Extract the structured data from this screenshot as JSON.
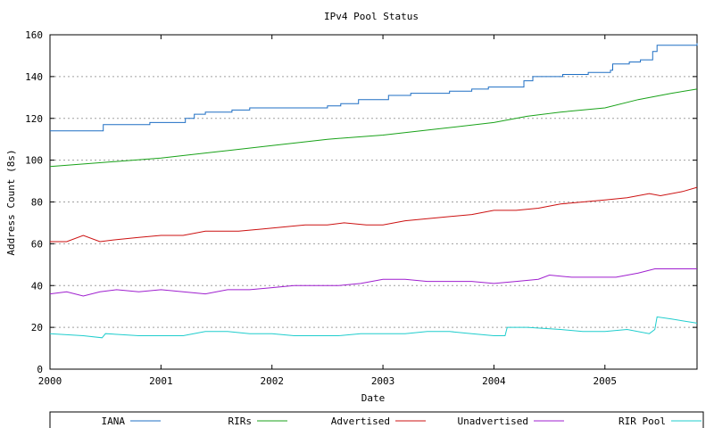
{
  "chart_data": {
    "type": "line",
    "title": "IPv4 Pool Status",
    "xlabel": "Date",
    "ylabel": "Address Count (8s)",
    "xlim": [
      2000.0,
      2005.83
    ],
    "ylim": [
      0,
      160
    ],
    "xticks": [
      2000,
      2001,
      2002,
      2003,
      2004,
      2005
    ],
    "yticks": [
      0,
      20,
      40,
      60,
      80,
      100,
      120,
      140,
      160
    ],
    "grid": "horizontal dotted",
    "legend_position": "bottom",
    "series": [
      {
        "name": "IANA",
        "color": "#1f6fc4",
        "step": true,
        "x": [
          2000.0,
          2000.48,
          2000.9,
          2001.0,
          2001.22,
          2001.3,
          2001.4,
          2001.5,
          2001.64,
          2001.8,
          2001.95,
          2002.2,
          2002.5,
          2002.62,
          2002.78,
          2003.05,
          2003.25,
          2003.45,
          2003.6,
          2003.8,
          2003.95,
          2004.05,
          2004.27,
          2004.35,
          2004.62,
          2004.7,
          2004.85,
          2005.05,
          2005.07,
          2005.22,
          2005.32,
          2005.43,
          2005.47,
          2005.83
        ],
        "y": [
          114,
          117,
          118,
          118,
          120,
          122,
          123,
          123,
          124,
          125,
          125,
          125,
          126,
          127,
          129,
          131,
          132,
          132,
          133,
          134,
          135,
          135,
          138,
          140,
          141,
          141,
          142,
          143,
          146,
          147,
          148,
          152,
          155,
          156
        ]
      },
      {
        "name": "RIRs",
        "color": "#19a219",
        "x": [
          2000.0,
          2000.5,
          2001.0,
          2001.5,
          2002.0,
          2002.5,
          2003.0,
          2003.5,
          2004.0,
          2004.3,
          2004.6,
          2005.0,
          2005.3,
          2005.6,
          2005.83
        ],
        "y": [
          97,
          99,
          101,
          104,
          107,
          110,
          112,
          115,
          118,
          121,
          123,
          125,
          129,
          132,
          134
        ]
      },
      {
        "name": "Advertised",
        "color": "#cc1111",
        "x": [
          2000.0,
          2000.15,
          2000.3,
          2000.45,
          2000.6,
          2000.8,
          2001.0,
          2001.2,
          2001.4,
          2001.55,
          2001.7,
          2001.9,
          2002.1,
          2002.3,
          2002.5,
          2002.65,
          2002.85,
          2003.0,
          2003.2,
          2003.4,
          2003.6,
          2003.8,
          2004.0,
          2004.2,
          2004.4,
          2004.6,
          2004.8,
          2005.0,
          2005.2,
          2005.4,
          2005.5,
          2005.7,
          2005.83
        ],
        "y": [
          61,
          61,
          64,
          61,
          62,
          63,
          64,
          64,
          66,
          66,
          66,
          67,
          68,
          69,
          69,
          70,
          69,
          69,
          71,
          72,
          73,
          74,
          76,
          76,
          77,
          79,
          80,
          81,
          82,
          84,
          83,
          85,
          87
        ]
      },
      {
        "name": "Unadvertised",
        "color": "#9f1fcf",
        "x": [
          2000.0,
          2000.15,
          2000.3,
          2000.45,
          2000.6,
          2000.8,
          2001.0,
          2001.2,
          2001.4,
          2001.6,
          2001.8,
          2002.0,
          2002.2,
          2002.4,
          2002.6,
          2002.8,
          2003.0,
          2003.2,
          2003.4,
          2003.6,
          2003.8,
          2004.0,
          2004.2,
          2004.4,
          2004.5,
          2004.7,
          2004.9,
          2005.1,
          2005.3,
          2005.45,
          2005.6,
          2005.83
        ],
        "y": [
          36,
          37,
          35,
          37,
          38,
          37,
          38,
          37,
          36,
          38,
          38,
          39,
          40,
          40,
          40,
          41,
          43,
          43,
          42,
          42,
          42,
          41,
          42,
          43,
          45,
          44,
          44,
          44,
          46,
          48,
          48,
          48
        ]
      },
      {
        "name": "RIR Pool",
        "color": "#1fcdcd",
        "x": [
          2000.0,
          2000.3,
          2000.47,
          2000.5,
          2000.8,
          2001.0,
          2001.2,
          2001.4,
          2001.6,
          2001.8,
          2002.0,
          2002.2,
          2002.4,
          2002.6,
          2002.8,
          2003.0,
          2003.2,
          2003.4,
          2003.6,
          2003.8,
          2004.0,
          2004.1,
          2004.12,
          2004.3,
          2004.6,
          2004.8,
          2005.0,
          2005.2,
          2005.4,
          2005.45,
          2005.47,
          2005.6,
          2005.83
        ],
        "y": [
          17,
          16,
          15,
          17,
          16,
          16,
          16,
          18,
          18,
          17,
          17,
          16,
          16,
          16,
          17,
          17,
          17,
          18,
          18,
          17,
          16,
          16,
          20,
          20,
          19,
          18,
          18,
          19,
          17,
          19,
          25,
          24,
          22
        ]
      }
    ]
  }
}
